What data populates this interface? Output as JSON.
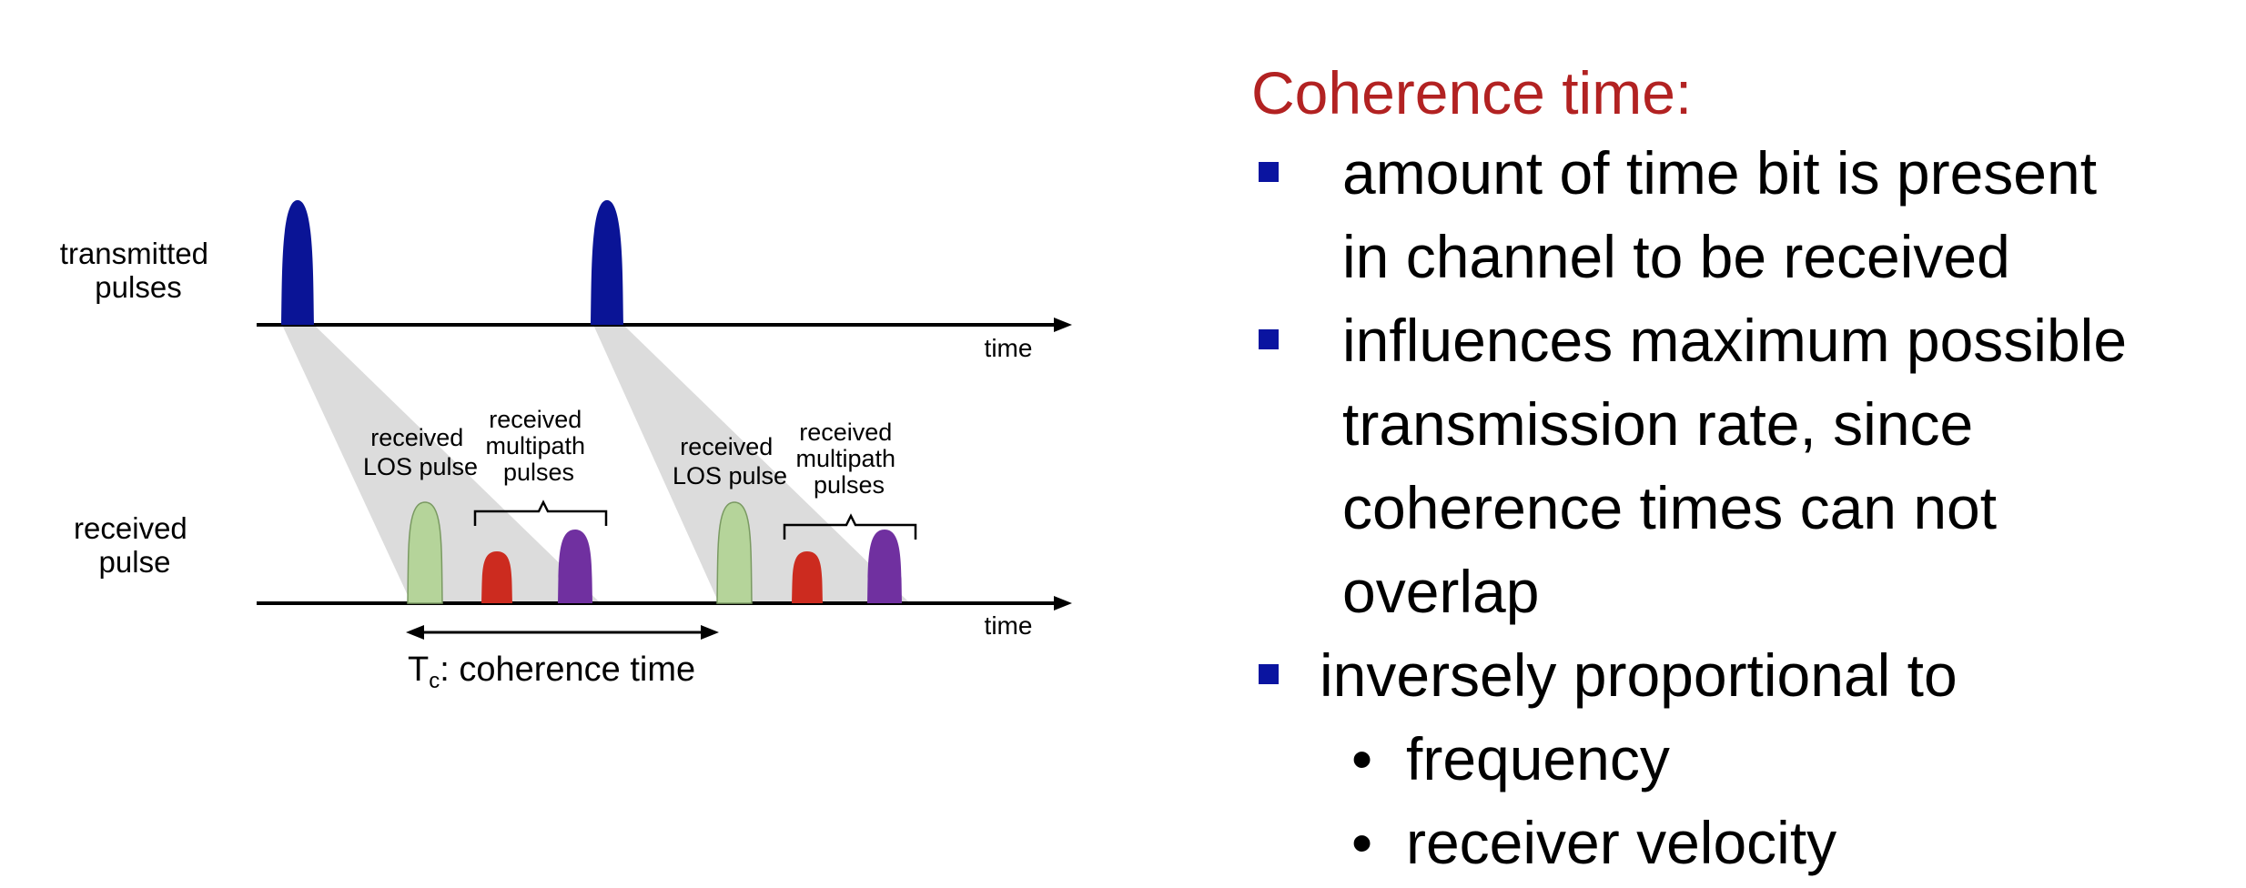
{
  "diagram": {
    "labels": {
      "transmitted": [
        "transmitted",
        "pulses"
      ],
      "received": [
        "received",
        "pulse"
      ],
      "time_axis_top": "time",
      "time_axis_bottom": "time",
      "los_pulse_1": [
        "received",
        "LOS pulse"
      ],
      "multipath_1": [
        "received",
        "multipath",
        "pulses"
      ],
      "los_pulse_2": [
        "received",
        "LOS pulse"
      ],
      "multipath_2": [
        "received",
        "multipath",
        "pulses"
      ],
      "coherence_T": "T",
      "coherence_sub": "c",
      "coherence_rest": ": coherence time"
    },
    "colors": {
      "tx_pulse": "#0a1496",
      "los_pulse": "#b5d49a",
      "multipath_red": "#cc2b1f",
      "multipath_purple": "#7030a0",
      "shadow": "#dcdcdc",
      "axis": "#000000"
    }
  },
  "panel": {
    "heading": "Coherence time:",
    "bullets": [
      {
        "lines": [
          "amount of time bit is present",
          "in channel to be received"
        ]
      },
      {
        "lines": [
          "influences maximum possible",
          "transmission rate, since",
          "coherence times can not",
          "overlap"
        ]
      },
      {
        "lines": [
          "inversely proportional to"
        ]
      }
    ],
    "sub_bullets": [
      "frequency",
      "receiver velocity"
    ],
    "colors": {
      "heading": "#b22222",
      "bullet_square": "#0a14a0"
    }
  }
}
